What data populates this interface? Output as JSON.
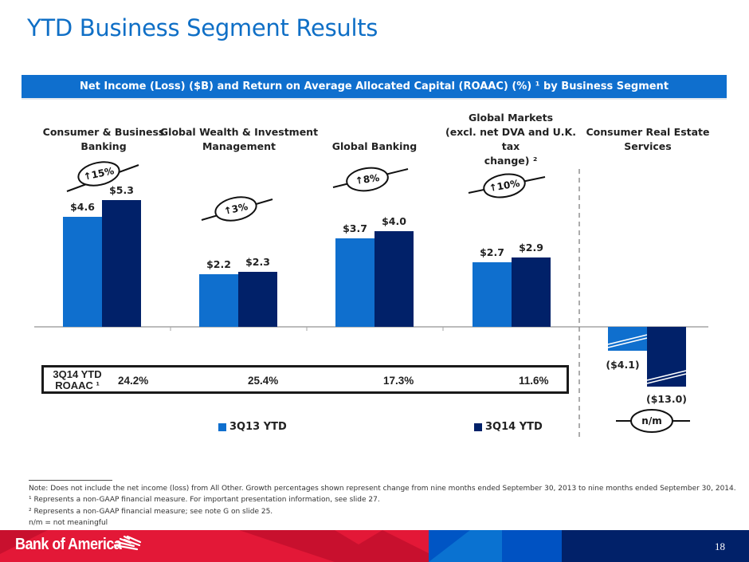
{
  "page": {
    "title": "YTD Business Segment Results",
    "banner": "Net Income (Loss) ($B) and Return on Average Allocated Capital (ROAAC) (%) ¹ by Business Segment",
    "page_number": "18",
    "brand": "Bank of America"
  },
  "segments": [
    {
      "label_lines": [
        "Consumer & Business",
        "Banking"
      ]
    },
    {
      "label_lines": [
        "Global Wealth & Investment",
        "Management"
      ]
    },
    {
      "label_lines": [
        "Global Banking"
      ]
    },
    {
      "label_lines": [
        "Global Markets",
        "(excl. net DVA and U.K. tax",
        "change) ²"
      ]
    },
    {
      "label_lines": [
        "Consumer Real Estate",
        "Services"
      ]
    }
  ],
  "roaac": {
    "label_line1": "3Q14 YTD",
    "label_line2": "ROAAC ¹",
    "values": [
      "24.2%",
      "25.4%",
      "17.3%",
      "11.6%"
    ]
  },
  "growth_callouts": [
    "↑15%",
    "↑3%",
    "↑8%",
    "↑10%",
    "n/m"
  ],
  "footnotes": [
    "Note: Does not include the net income (loss) from All Other. Growth percentages shown represent change from nine months ended September 30, 2013 to nine months ended September 30, 2014.",
    "¹ Represents a non-GAAP financial measure. For important presentation information, see slide 27.",
    "² Represents a non-GAAP financial measure; see note G on slide 25.",
    "n/m = not meaningful"
  ],
  "colors": {
    "series_3q13": "#0f6fce",
    "series_3q14": "#012169",
    "title": "#0f6fc6",
    "footer_red": "#e31837",
    "footer_navy": "#012169"
  },
  "chart_data": {
    "type": "bar",
    "title": "Net Income (Loss) ($B) by Business Segment",
    "categories": [
      "Consumer & Business Banking",
      "Global Wealth & Investment Management",
      "Global Banking",
      "Global Markets (excl. net DVA and U.K. tax change)",
      "Consumer Real Estate Services"
    ],
    "series": [
      {
        "name": "3Q13 YTD",
        "values": [
          4.6,
          2.2,
          3.7,
          2.7,
          -4.1
        ],
        "labels": [
          "$4.6",
          "$2.2",
          "$3.7",
          "$2.7",
          "($4.1)"
        ]
      },
      {
        "name": "3Q14 YTD",
        "values": [
          5.3,
          2.3,
          4.0,
          2.9,
          -13.0
        ],
        "labels": [
          "$5.3",
          "$2.3",
          "$4.0",
          "$2.9",
          "($13.0)"
        ]
      }
    ],
    "negative_bars_truncated": true,
    "xlabel": "",
    "ylabel": "Net Income ($B)",
    "legend": "bottom",
    "grid": false
  }
}
